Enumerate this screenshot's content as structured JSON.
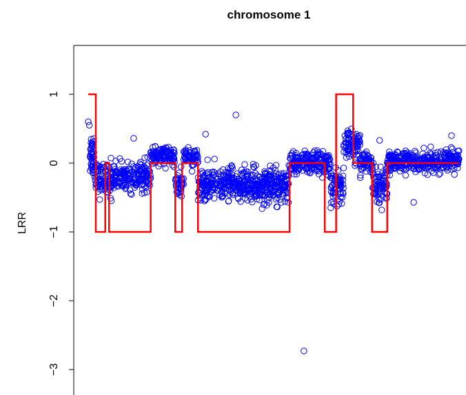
{
  "chart_data": {
    "type": "scatter",
    "title": "chromosome 1",
    "xlabel": "",
    "ylabel": "LRR",
    "ylim": [
      -3.3,
      1.65
    ],
    "y_ticks": [
      1,
      0,
      -1,
      -2,
      -3
    ],
    "y_tick_labels": [
      "1",
      "0",
      "−1",
      "−2",
      "−3"
    ],
    "x_ticks": [],
    "xlim": [
      0,
      1
    ],
    "grid": false,
    "point_color": "#0000ff",
    "segment_color": "#ff0000",
    "clusters": [
      {
        "x0": 0.025,
        "x1": 0.035,
        "mean": 0.15,
        "sd": 0.16,
        "count": 45
      },
      {
        "x0": 0.035,
        "x1": 0.08,
        "mean": -0.24,
        "sd": 0.12,
        "count": 80
      },
      {
        "x0": 0.08,
        "x1": 0.185,
        "mean": -0.2,
        "sd": 0.1,
        "count": 200
      },
      {
        "x0": 0.185,
        "x1": 0.25,
        "mean": 0.1,
        "sd": 0.06,
        "count": 120
      },
      {
        "x0": 0.25,
        "x1": 0.272,
        "mean": -0.3,
        "sd": 0.13,
        "count": 40
      },
      {
        "x0": 0.272,
        "x1": 0.31,
        "mean": 0.08,
        "sd": 0.07,
        "count": 60
      },
      {
        "x0": 0.31,
        "x1": 0.55,
        "mean": -0.32,
        "sd": 0.12,
        "count": 500
      },
      {
        "x0": 0.55,
        "x1": 0.66,
        "mean": 0.0,
        "sd": 0.08,
        "count": 200
      },
      {
        "x0": 0.66,
        "x1": 0.695,
        "mean": -0.35,
        "sd": 0.13,
        "count": 70
      },
      {
        "x0": 0.695,
        "x1": 0.738,
        "mean": 0.25,
        "sd": 0.11,
        "count": 80
      },
      {
        "x0": 0.738,
        "x1": 0.77,
        "mean": 0.02,
        "sd": 0.07,
        "count": 60
      },
      {
        "x0": 0.77,
        "x1": 0.81,
        "mean": -0.3,
        "sd": 0.13,
        "count": 80
      },
      {
        "x0": 0.81,
        "x1": 1.0,
        "mean": 0.02,
        "sd": 0.08,
        "count": 350
      }
    ],
    "outliers": [
      {
        "x": 0.41,
        "y": 0.7
      },
      {
        "x": 0.59,
        "y": -2.73
      },
      {
        "x": 0.33,
        "y": 0.42
      },
      {
        "x": 0.88,
        "y": -0.57
      },
      {
        "x": 0.98,
        "y": 0.4
      },
      {
        "x": 0.14,
        "y": 0.36
      },
      {
        "x": 0.79,
        "y": 0.33
      },
      {
        "x": 0.02,
        "y": 0.6
      },
      {
        "x": 0.023,
        "y": 0.55
      }
    ],
    "segments": [
      {
        "x0": 0.02,
        "x1": 0.04,
        "y": 1
      },
      {
        "x0": 0.04,
        "x1": 0.065,
        "y": -1
      },
      {
        "x0": 0.065,
        "x1": 0.075,
        "y": 0
      },
      {
        "x0": 0.075,
        "x1": 0.185,
        "y": -1
      },
      {
        "x0": 0.185,
        "x1": 0.25,
        "y": 0
      },
      {
        "x0": 0.25,
        "x1": 0.268,
        "y": -1
      },
      {
        "x0": 0.268,
        "x1": 0.31,
        "y": 0
      },
      {
        "x0": 0.31,
        "x1": 0.552,
        "y": -1
      },
      {
        "x0": 0.552,
        "x1": 0.645,
        "y": 0
      },
      {
        "x0": 0.645,
        "x1": 0.675,
        "y": -1
      },
      {
        "x0": 0.675,
        "x1": 0.72,
        "y": 1
      },
      {
        "x0": 0.72,
        "x1": 0.77,
        "y": 0
      },
      {
        "x0": 0.77,
        "x1": 0.81,
        "y": -1
      },
      {
        "x0": 0.81,
        "x1": 1.0,
        "y": 0
      }
    ]
  }
}
